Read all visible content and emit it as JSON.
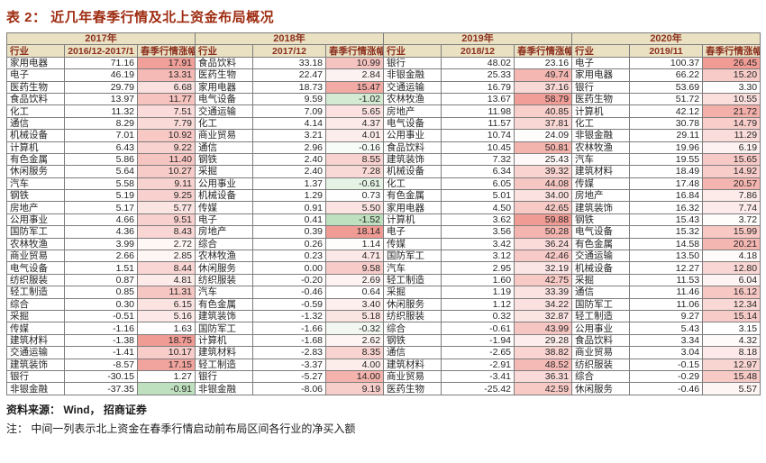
{
  "title": "表 2： 近几年春季行情及北上资金布局概况",
  "footer": {
    "source": "资料来源： Wind， 招商证券",
    "note": "注： 中间一列表示北上资金在春季行情启动前布局区间各行业的净买入额"
  },
  "colors": {
    "title_text": "#9E2B10",
    "header_bg": "#EAE1C2",
    "header_text": "#8C3120",
    "border": "#7D7D7D",
    "body_text": "#262626",
    "heat_max_red": "#F09B94",
    "heat_max_green": "#BFE0BE"
  },
  "table": {
    "groups": [
      {
        "year": "2017年",
        "industry_header": "行业",
        "period": "2016/12-2017/1",
        "gain_header": "春季行情涨幅",
        "rows": [
          {
            "industry": "家用电器",
            "net_buy": "71.16",
            "gain": "17.91"
          },
          {
            "industry": "电子",
            "net_buy": "46.19",
            "gain": "13.31"
          },
          {
            "industry": "医药生物",
            "net_buy": "29.79",
            "gain": "6.68"
          },
          {
            "industry": "食品饮料",
            "net_buy": "13.97",
            "gain": "11.77"
          },
          {
            "industry": "化工",
            "net_buy": "11.32",
            "gain": "7.51"
          },
          {
            "industry": "通信",
            "net_buy": "8.29",
            "gain": "7.79"
          },
          {
            "industry": "机械设备",
            "net_buy": "7.01",
            "gain": "10.92"
          },
          {
            "industry": "计算机",
            "net_buy": "6.43",
            "gain": "9.22"
          },
          {
            "industry": "有色金属",
            "net_buy": "5.86",
            "gain": "11.40"
          },
          {
            "industry": "休闲服务",
            "net_buy": "5.64",
            "gain": "10.27"
          },
          {
            "industry": "汽车",
            "net_buy": "5.58",
            "gain": "9.11"
          },
          {
            "industry": "钢铁",
            "net_buy": "5.19",
            "gain": "9.25"
          },
          {
            "industry": "房地产",
            "net_buy": "5.17",
            "gain": "5.77"
          },
          {
            "industry": "公用事业",
            "net_buy": "4.66",
            "gain": "9.51"
          },
          {
            "industry": "国防军工",
            "net_buy": "4.36",
            "gain": "8.43"
          },
          {
            "industry": "农林牧渔",
            "net_buy": "3.99",
            "gain": "2.72"
          },
          {
            "industry": "商业贸易",
            "net_buy": "2.66",
            "gain": "2.85"
          },
          {
            "industry": "电气设备",
            "net_buy": "1.51",
            "gain": "8.44"
          },
          {
            "industry": "纺织服装",
            "net_buy": "0.87",
            "gain": "4.81"
          },
          {
            "industry": "轻工制造",
            "net_buy": "0.85",
            "gain": "11.31"
          },
          {
            "industry": "综合",
            "net_buy": "0.30",
            "gain": "6.15"
          },
          {
            "industry": "采掘",
            "net_buy": "-0.51",
            "gain": "5.16"
          },
          {
            "industry": "传媒",
            "net_buy": "-1.16",
            "gain": "1.63"
          },
          {
            "industry": "建筑材料",
            "net_buy": "-1.38",
            "gain": "18.75"
          },
          {
            "industry": "交通运输",
            "net_buy": "-1.41",
            "gain": "10.17"
          },
          {
            "industry": "建筑装饰",
            "net_buy": "-8.57",
            "gain": "17.15"
          },
          {
            "industry": "银行",
            "net_buy": "-30.15",
            "gain": "1.27"
          },
          {
            "industry": "非银金融",
            "net_buy": "-37.35",
            "gain": "-0.91"
          }
        ]
      },
      {
        "year": "2018年",
        "industry_header": "行业",
        "period": "2017/12",
        "gain_header": "春季行情涨幅",
        "rows": [
          {
            "industry": "食品饮料",
            "net_buy": "33.18",
            "gain": "10.99"
          },
          {
            "industry": "医药生物",
            "net_buy": "22.47",
            "gain": "2.84"
          },
          {
            "industry": "家用电器",
            "net_buy": "18.73",
            "gain": "15.47"
          },
          {
            "industry": "电气设备",
            "net_buy": "9.59",
            "gain": "-1.02"
          },
          {
            "industry": "交通运输",
            "net_buy": "7.09",
            "gain": "5.65"
          },
          {
            "industry": "化工",
            "net_buy": "4.14",
            "gain": "4.37"
          },
          {
            "industry": "商业贸易",
            "net_buy": "3.21",
            "gain": "4.01"
          },
          {
            "industry": "通信",
            "net_buy": "2.96",
            "gain": "-0.16"
          },
          {
            "industry": "钢铁",
            "net_buy": "2.40",
            "gain": "8.55"
          },
          {
            "industry": "采掘",
            "net_buy": "2.40",
            "gain": "7.28"
          },
          {
            "industry": "公用事业",
            "net_buy": "1.37",
            "gain": "-0.61"
          },
          {
            "industry": "机械设备",
            "net_buy": "1.29",
            "gain": "0.73"
          },
          {
            "industry": "传媒",
            "net_buy": "0.91",
            "gain": "5.50"
          },
          {
            "industry": "电子",
            "net_buy": "0.41",
            "gain": "-1.52"
          },
          {
            "industry": "房地产",
            "net_buy": "0.39",
            "gain": "18.14"
          },
          {
            "industry": "综合",
            "net_buy": "0.26",
            "gain": "1.14"
          },
          {
            "industry": "农林牧渔",
            "net_buy": "0.23",
            "gain": "4.71"
          },
          {
            "industry": "休闲服务",
            "net_buy": "0.00",
            "gain": "9.58"
          },
          {
            "industry": "纺织服装",
            "net_buy": "-0.20",
            "gain": "2.69"
          },
          {
            "industry": "汽车",
            "net_buy": "-0.46",
            "gain": "0.64"
          },
          {
            "industry": "有色金属",
            "net_buy": "-0.59",
            "gain": "3.40"
          },
          {
            "industry": "建筑装饰",
            "net_buy": "-1.32",
            "gain": "5.18"
          },
          {
            "industry": "国防军工",
            "net_buy": "-1.66",
            "gain": "-0.32"
          },
          {
            "industry": "计算机",
            "net_buy": "-1.68",
            "gain": "2.62"
          },
          {
            "industry": "建筑材料",
            "net_buy": "-2.83",
            "gain": "8.35"
          },
          {
            "industry": "轻工制造",
            "net_buy": "-3.37",
            "gain": "4.00"
          },
          {
            "industry": "银行",
            "net_buy": "-5.27",
            "gain": "14.00"
          },
          {
            "industry": "非银金融",
            "net_buy": "-8.06",
            "gain": "9.19"
          }
        ]
      },
      {
        "year": "2019年",
        "industry_header": "行业",
        "period": "2018/12",
        "gain_header": "春季行情涨幅",
        "rows": [
          {
            "industry": "银行",
            "net_buy": "48.02",
            "gain": "23.16"
          },
          {
            "industry": "非银金融",
            "net_buy": "25.33",
            "gain": "49.74"
          },
          {
            "industry": "交通运输",
            "net_buy": "16.79",
            "gain": "37.16"
          },
          {
            "industry": "农林牧渔",
            "net_buy": "13.67",
            "gain": "58.79"
          },
          {
            "industry": "房地产",
            "net_buy": "11.98",
            "gain": "40.85"
          },
          {
            "industry": "电气设备",
            "net_buy": "11.57",
            "gain": "37.81"
          },
          {
            "industry": "公用事业",
            "net_buy": "10.74",
            "gain": "24.09"
          },
          {
            "industry": "食品饮料",
            "net_buy": "10.45",
            "gain": "50.81"
          },
          {
            "industry": "建筑装饰",
            "net_buy": "7.32",
            "gain": "25.43"
          },
          {
            "industry": "机械设备",
            "net_buy": "6.34",
            "gain": "39.32"
          },
          {
            "industry": "化工",
            "net_buy": "6.05",
            "gain": "44.08"
          },
          {
            "industry": "有色金属",
            "net_buy": "5.01",
            "gain": "34.00"
          },
          {
            "industry": "家用电器",
            "net_buy": "4.50",
            "gain": "42.65"
          },
          {
            "industry": "计算机",
            "net_buy": "3.62",
            "gain": "59.88"
          },
          {
            "industry": "电子",
            "net_buy": "3.56",
            "gain": "50.28"
          },
          {
            "industry": "传媒",
            "net_buy": "3.42",
            "gain": "36.24"
          },
          {
            "industry": "国防军工",
            "net_buy": "3.12",
            "gain": "42.46"
          },
          {
            "industry": "汽车",
            "net_buy": "2.95",
            "gain": "32.19"
          },
          {
            "industry": "轻工制造",
            "net_buy": "1.60",
            "gain": "42.75"
          },
          {
            "industry": "采掘",
            "net_buy": "1.19",
            "gain": "33.39"
          },
          {
            "industry": "休闲服务",
            "net_buy": "1.12",
            "gain": "34.22"
          },
          {
            "industry": "纺织服装",
            "net_buy": "0.32",
            "gain": "32.87"
          },
          {
            "industry": "综合",
            "net_buy": "-0.61",
            "gain": "43.99"
          },
          {
            "industry": "钢铁",
            "net_buy": "-1.94",
            "gain": "29.28"
          },
          {
            "industry": "通信",
            "net_buy": "-2.65",
            "gain": "38.82"
          },
          {
            "industry": "建筑材料",
            "net_buy": "-2.91",
            "gain": "48.52"
          },
          {
            "industry": "商业贸易",
            "net_buy": "-3.41",
            "gain": "36.31"
          },
          {
            "industry": "医药生物",
            "net_buy": "-25.42",
            "gain": "42.59"
          }
        ]
      },
      {
        "year": "2020年",
        "industry_header": "行业",
        "period": "2019/11",
        "gain_header": "春季行情涨幅",
        "rows": [
          {
            "industry": "电子",
            "net_buy": "100.37",
            "gain": "26.45"
          },
          {
            "industry": "家用电器",
            "net_buy": "66.22",
            "gain": "15.20"
          },
          {
            "industry": "银行",
            "net_buy": "53.69",
            "gain": "3.30"
          },
          {
            "industry": "医药生物",
            "net_buy": "51.72",
            "gain": "10.55"
          },
          {
            "industry": "计算机",
            "net_buy": "42.12",
            "gain": "21.72"
          },
          {
            "industry": "化工",
            "net_buy": "30.78",
            "gain": "14.79"
          },
          {
            "industry": "非银金融",
            "net_buy": "29.11",
            "gain": "11.29"
          },
          {
            "industry": "农林牧渔",
            "net_buy": "19.96",
            "gain": "6.19"
          },
          {
            "industry": "汽车",
            "net_buy": "19.55",
            "gain": "15.65"
          },
          {
            "industry": "建筑材料",
            "net_buy": "18.49",
            "gain": "14.92"
          },
          {
            "industry": "传媒",
            "net_buy": "17.48",
            "gain": "20.57"
          },
          {
            "industry": "房地产",
            "net_buy": "16.84",
            "gain": "7.86"
          },
          {
            "industry": "建筑装饰",
            "net_buy": "16.32",
            "gain": "7.74"
          },
          {
            "industry": "钢铁",
            "net_buy": "15.43",
            "gain": "3.72"
          },
          {
            "industry": "电气设备",
            "net_buy": "15.32",
            "gain": "15.99"
          },
          {
            "industry": "有色金属",
            "net_buy": "14.58",
            "gain": "20.21"
          },
          {
            "industry": "交通运输",
            "net_buy": "13.50",
            "gain": "4.18"
          },
          {
            "industry": "机械设备",
            "net_buy": "12.27",
            "gain": "12.80"
          },
          {
            "industry": "采掘",
            "net_buy": "11.53",
            "gain": "6.04"
          },
          {
            "industry": "通信",
            "net_buy": "11.46",
            "gain": "16.12"
          },
          {
            "industry": "国防军工",
            "net_buy": "11.06",
            "gain": "12.34"
          },
          {
            "industry": "轻工制造",
            "net_buy": "9.27",
            "gain": "15.14"
          },
          {
            "industry": "公用事业",
            "net_buy": "5.43",
            "gain": "3.15"
          },
          {
            "industry": "食品饮料",
            "net_buy": "3.34",
            "gain": "4.32"
          },
          {
            "industry": "商业贸易",
            "net_buy": "3.04",
            "gain": "8.18"
          },
          {
            "industry": "纺织服装",
            "net_buy": "-0.15",
            "gain": "12.97"
          },
          {
            "industry": "综合",
            "net_buy": "-0.29",
            "gain": "15.48"
          },
          {
            "industry": "休闲服务",
            "net_buy": "-0.46",
            "gain": "5.57"
          }
        ]
      }
    ]
  }
}
